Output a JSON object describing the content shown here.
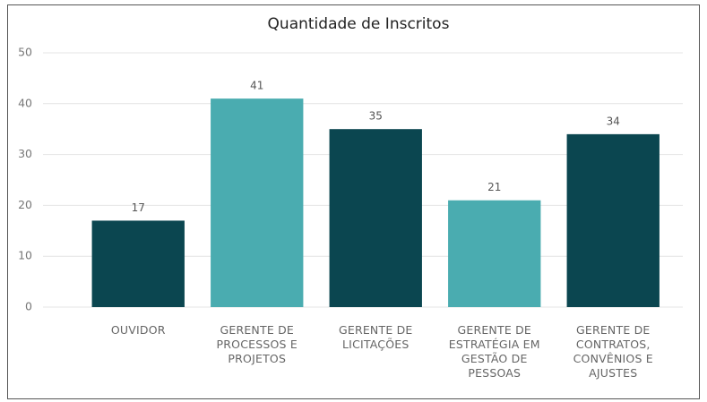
{
  "chart_data": {
    "type": "bar",
    "title": "Quantidade de Inscritos",
    "categories": [
      "OUVIDOR",
      "GERENTE DE PROCESSOS E PROJETOS",
      "GERENTE DE LICITAÇÕES",
      "GERENTE DE ESTRATÉGIA EM GESTÃO DE PESSOAS",
      "GERENTE DE CONTRATOS, CONVÊNIOS E AJUSTES"
    ],
    "values": [
      17,
      41,
      35,
      21,
      34
    ],
    "colors": [
      "#0b4650",
      "#4aacb0",
      "#0b4650",
      "#4aacb0",
      "#0b4650"
    ],
    "ylim": [
      0,
      50
    ],
    "yticks": [
      0,
      10,
      20,
      30,
      40,
      50
    ],
    "grid": true
  }
}
